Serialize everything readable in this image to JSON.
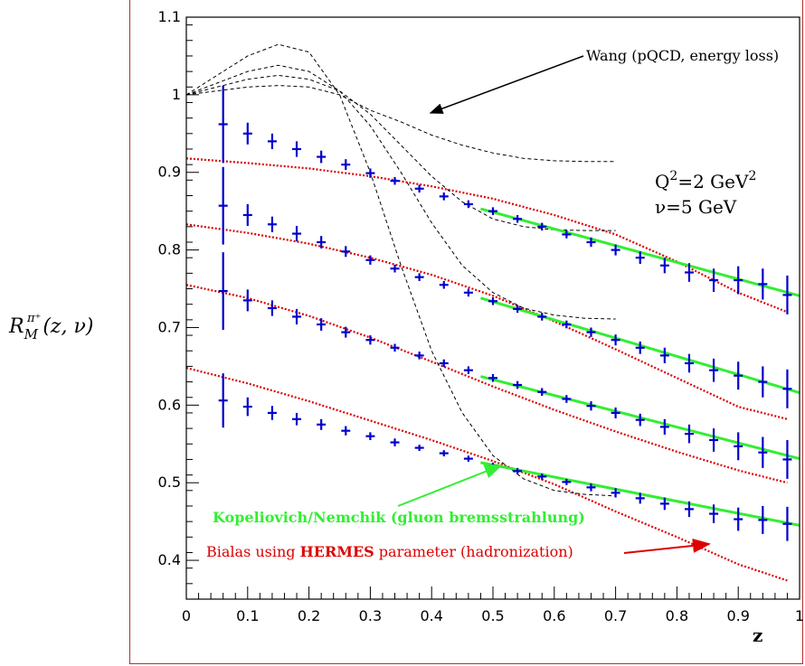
{
  "chart_data": {
    "type": "line",
    "xlabel": "z",
    "ylabel_main": "R",
    "ylabel_sub": "M",
    "ylabel_sup": "π⁺",
    "ylabel_args": "(z, ν)",
    "xlim": [
      0,
      1
    ],
    "ylim": [
      0.35,
      1.1
    ],
    "xticks": [
      "0",
      "0.1",
      "0.2",
      "0.3",
      "0.4",
      "0.5",
      "0.6",
      "0.7",
      "0.8",
      "0.9",
      "1"
    ],
    "yticks": [
      "0.4",
      "0.5",
      "0.6",
      "0.7",
      "0.8",
      "0.9",
      "1",
      "1.1"
    ],
    "kinematics": {
      "q2": "Q",
      "q2_exp": "2",
      "q2_val": "=2 GeV",
      "q2_val_exp": "2",
      "nu": "ν=5 GeV"
    },
    "annotations": {
      "wang": "Wang (pQCD, energy loss)",
      "kopeliovich": "Kopeliovich/Nemchik (gluon bremsstrahlung)",
      "bialas_prefix": "Bialas using ",
      "bialas_bold": "HERMES",
      "bialas_suffix": " parameter (hadronization)"
    },
    "colors": {
      "data": "#0000cc",
      "kopeliovich": "#33ee33",
      "bialas": "#dd0000",
      "wang": "#000000",
      "frame": "#b03030"
    },
    "data_x": [
      0.06,
      0.1,
      0.14,
      0.18,
      0.22,
      0.26,
      0.3,
      0.34,
      0.38,
      0.42,
      0.46,
      0.5,
      0.54,
      0.58,
      0.62,
      0.66,
      0.7,
      0.74,
      0.78,
      0.82,
      0.86,
      0.9,
      0.94,
      0.98
    ],
    "data_series": [
      {
        "values": [
          0.962,
          0.95,
          0.94,
          0.93,
          0.92,
          0.91,
          0.899,
          0.889,
          0.879,
          0.869,
          0.859,
          0.85,
          0.84,
          0.83,
          0.82,
          0.81,
          0.8,
          0.79,
          0.78,
          0.771,
          0.761,
          0.761,
          0.756,
          0.742
        ],
        "err": [
          0.05,
          0.014,
          0.01,
          0.01,
          0.008,
          0.007,
          0.006,
          0.005,
          0.005,
          0.005,
          0.005,
          0.005,
          0.005,
          0.005,
          0.005,
          0.006,
          0.007,
          0.008,
          0.01,
          0.012,
          0.015,
          0.018,
          0.02,
          0.025
        ]
      },
      {
        "values": [
          0.857,
          0.845,
          0.833,
          0.821,
          0.81,
          0.798,
          0.787,
          0.776,
          0.765,
          0.755,
          0.745,
          0.734,
          0.724,
          0.714,
          0.704,
          0.694,
          0.684,
          0.674,
          0.664,
          0.654,
          0.645,
          0.638,
          0.63,
          0.621
        ],
        "err": [
          0.05,
          0.014,
          0.01,
          0.01,
          0.008,
          0.007,
          0.006,
          0.005,
          0.005,
          0.005,
          0.005,
          0.005,
          0.005,
          0.005,
          0.005,
          0.006,
          0.007,
          0.008,
          0.01,
          0.012,
          0.015,
          0.018,
          0.02,
          0.025
        ]
      },
      {
        "values": [
          0.747,
          0.735,
          0.725,
          0.714,
          0.704,
          0.694,
          0.684,
          0.674,
          0.664,
          0.654,
          0.645,
          0.635,
          0.626,
          0.617,
          0.608,
          0.599,
          0.59,
          0.581,
          0.572,
          0.563,
          0.555,
          0.547,
          0.539,
          0.53
        ],
        "err": [
          0.05,
          0.014,
          0.01,
          0.01,
          0.008,
          0.007,
          0.006,
          0.005,
          0.005,
          0.005,
          0.005,
          0.005,
          0.005,
          0.005,
          0.005,
          0.006,
          0.007,
          0.008,
          0.01,
          0.012,
          0.015,
          0.018,
          0.02,
          0.025
        ]
      },
      {
        "values": [
          0.606,
          0.598,
          0.59,
          0.582,
          0.575,
          0.567,
          0.56,
          0.552,
          0.545,
          0.538,
          0.531,
          0.522,
          0.515,
          0.508,
          0.501,
          0.494,
          0.487,
          0.48,
          0.473,
          0.466,
          0.46,
          0.453,
          0.452,
          0.447
        ],
        "err": [
          0.035,
          0.012,
          0.009,
          0.008,
          0.007,
          0.006,
          0.005,
          0.005,
          0.004,
          0.004,
          0.004,
          0.004,
          0.004,
          0.004,
          0.004,
          0.005,
          0.006,
          0.007,
          0.008,
          0.01,
          0.012,
          0.015,
          0.018,
          0.022
        ]
      }
    ],
    "kopeliovich_lines": [
      {
        "x": [
          0.48,
          1.0
        ],
        "y": [
          0.853,
          0.741
        ]
      },
      {
        "x": [
          0.48,
          1.0
        ],
        "y": [
          0.738,
          0.616
        ]
      },
      {
        "x": [
          0.48,
          1.0
        ],
        "y": [
          0.637,
          0.531
        ]
      },
      {
        "x": [
          0.48,
          1.0
        ],
        "y": [
          0.526,
          0.445
        ]
      }
    ],
    "bialas_curves": [
      {
        "x": [
          0,
          0.1,
          0.2,
          0.3,
          0.4,
          0.5,
          0.6,
          0.7,
          0.8,
          0.9,
          0.98
        ],
        "y": [
          0.918,
          0.912,
          0.905,
          0.895,
          0.882,
          0.866,
          0.845,
          0.82,
          0.785,
          0.745,
          0.72
        ]
      },
      {
        "x": [
          0,
          0.1,
          0.2,
          0.3,
          0.4,
          0.5,
          0.6,
          0.7,
          0.8,
          0.9,
          0.98
        ],
        "y": [
          0.833,
          0.822,
          0.808,
          0.79,
          0.768,
          0.741,
          0.708,
          0.672,
          0.635,
          0.598,
          0.582
        ]
      },
      {
        "x": [
          0,
          0.1,
          0.2,
          0.3,
          0.4,
          0.5,
          0.6,
          0.7,
          0.8,
          0.9,
          0.98
        ],
        "y": [
          0.755,
          0.738,
          0.715,
          0.687,
          0.656,
          0.624,
          0.594,
          0.566,
          0.54,
          0.516,
          0.5
        ]
      },
      {
        "x": [
          0,
          0.1,
          0.2,
          0.3,
          0.4,
          0.5,
          0.6,
          0.7,
          0.8,
          0.9,
          0.98
        ],
        "y": [
          0.648,
          0.628,
          0.605,
          0.58,
          0.555,
          0.528,
          0.498,
          0.463,
          0.43,
          0.395,
          0.374
        ]
      }
    ],
    "wang_curves": [
      {
        "x": [
          0,
          0.05,
          0.1,
          0.15,
          0.2,
          0.25,
          0.3,
          0.35,
          0.4,
          0.45,
          0.5,
          0.55,
          0.6,
          0.65,
          0.7
        ],
        "y": [
          1.0,
          1.005,
          1.01,
          1.012,
          1.01,
          1.0,
          0.98,
          0.965,
          0.948,
          0.935,
          0.925,
          0.918,
          0.915,
          0.914,
          0.914
        ]
      },
      {
        "x": [
          0,
          0.05,
          0.1,
          0.15,
          0.2,
          0.25,
          0.3,
          0.35,
          0.4,
          0.45,
          0.5,
          0.55,
          0.6,
          0.65,
          0.7
        ],
        "y": [
          1.0,
          1.01,
          1.02,
          1.025,
          1.02,
          1.005,
          0.975,
          0.935,
          0.895,
          0.862,
          0.84,
          0.83,
          0.826,
          0.825,
          0.825
        ]
      },
      {
        "x": [
          0,
          0.05,
          0.1,
          0.15,
          0.2,
          0.25,
          0.3,
          0.35,
          0.4,
          0.45,
          0.5,
          0.55,
          0.6,
          0.65,
          0.7
        ],
        "y": [
          1.0,
          1.015,
          1.03,
          1.038,
          1.03,
          1.005,
          0.96,
          0.9,
          0.835,
          0.78,
          0.745,
          0.725,
          0.716,
          0.712,
          0.711
        ]
      },
      {
        "x": [
          0,
          0.05,
          0.1,
          0.15,
          0.2,
          0.25,
          0.3,
          0.35,
          0.4,
          0.45,
          0.5,
          0.55,
          0.6,
          0.65,
          0.7
        ],
        "y": [
          1.0,
          1.025,
          1.05,
          1.065,
          1.055,
          1.0,
          0.9,
          0.78,
          0.67,
          0.59,
          0.535,
          0.505,
          0.49,
          0.485,
          0.483
        ]
      }
    ]
  }
}
